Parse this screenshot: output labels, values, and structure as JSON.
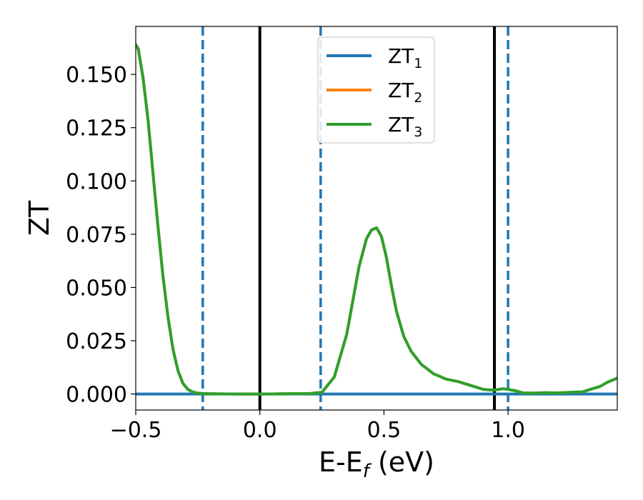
{
  "chart_data": {
    "type": "line",
    "xlabel": "E-E",
    "xlabel_sub": "f",
    "xlabel_unit": " (eV)",
    "ylabel": "ZT",
    "xlim": [
      -0.5,
      1.44
    ],
    "ylim": [
      -0.0075,
      0.1725
    ],
    "x_ticks": [
      -0.5,
      0.0,
      0.5,
      1.0
    ],
    "x_tick_labels": [
      "−0.5",
      "0.0",
      "0.5",
      "1.0"
    ],
    "y_ticks": [
      0.0,
      0.025,
      0.05,
      0.075,
      0.1,
      0.125,
      0.15
    ],
    "y_tick_labels": [
      "0.000",
      "0.025",
      "0.050",
      "0.075",
      "0.100",
      "0.125",
      "0.150"
    ],
    "grid": false,
    "legend_position": "upper-center",
    "vertical_lines": [
      {
        "x": 0.0,
        "style": "solid",
        "color": "#000000"
      },
      {
        "x": 0.945,
        "style": "solid",
        "color": "#000000"
      },
      {
        "x": -0.23,
        "style": "dashed",
        "color": "#1f77b4"
      },
      {
        "x": 0.245,
        "style": "dashed",
        "color": "#1f77b4"
      },
      {
        "x": 1.0,
        "style": "dashed",
        "color": "#1f77b4"
      }
    ],
    "series": [
      {
        "name": "ZT",
        "name_sub": "1",
        "color": "#1f77b4",
        "x": [
          -0.5,
          1.44
        ],
        "y": [
          0.0,
          0.0
        ]
      },
      {
        "name": "ZT",
        "name_sub": "2",
        "color": "#ff7f0e",
        "x": [
          -0.5,
          -0.49,
          -0.47,
          -0.45,
          -0.43,
          -0.41,
          -0.39,
          -0.37,
          -0.35,
          -0.33,
          -0.31,
          -0.29,
          -0.27,
          -0.25,
          -0.23,
          -0.2,
          -0.1,
          0.0,
          0.1,
          0.2,
          0.25,
          0.3,
          0.35,
          0.4,
          0.43,
          0.45,
          0.47,
          0.49,
          0.51,
          0.53,
          0.55,
          0.58,
          0.61,
          0.65,
          0.7,
          0.75,
          0.8,
          0.85,
          0.9,
          0.94,
          0.98,
          1.0,
          1.03,
          1.06,
          1.1,
          1.15,
          1.2,
          1.25,
          1.3,
          1.34,
          1.37,
          1.4,
          1.44
        ],
        "y": [
          0.164,
          0.162,
          0.148,
          0.128,
          0.103,
          0.078,
          0.055,
          0.036,
          0.021,
          0.011,
          0.005,
          0.0022,
          0.0009,
          0.0004,
          0.0002,
          0.0001,
          0.0,
          0.0,
          0.0001,
          0.0002,
          0.0008,
          0.008,
          0.028,
          0.06,
          0.073,
          0.077,
          0.078,
          0.074,
          0.064,
          0.051,
          0.039,
          0.027,
          0.02,
          0.014,
          0.0095,
          0.007,
          0.0058,
          0.004,
          0.0022,
          0.0018,
          0.0025,
          0.0022,
          0.0015,
          0.0005,
          0.0004,
          0.0006,
          0.0005,
          0.0008,
          0.001,
          0.0025,
          0.0035,
          0.0055,
          0.0075
        ]
      },
      {
        "name": "ZT",
        "name_sub": "3",
        "color": "#2ca02c",
        "x": [
          -0.5,
          -0.49,
          -0.47,
          -0.45,
          -0.43,
          -0.41,
          -0.39,
          -0.37,
          -0.35,
          -0.33,
          -0.31,
          -0.29,
          -0.27,
          -0.25,
          -0.23,
          -0.2,
          -0.1,
          0.0,
          0.1,
          0.2,
          0.25,
          0.3,
          0.35,
          0.4,
          0.43,
          0.45,
          0.47,
          0.49,
          0.51,
          0.53,
          0.55,
          0.58,
          0.61,
          0.65,
          0.7,
          0.75,
          0.8,
          0.85,
          0.9,
          0.94,
          0.98,
          1.0,
          1.03,
          1.06,
          1.1,
          1.15,
          1.2,
          1.25,
          1.3,
          1.34,
          1.37,
          1.4,
          1.44
        ],
        "y": [
          0.164,
          0.162,
          0.148,
          0.128,
          0.103,
          0.078,
          0.055,
          0.036,
          0.021,
          0.011,
          0.005,
          0.0022,
          0.0009,
          0.0004,
          0.0002,
          0.0001,
          0.0,
          0.0,
          0.0001,
          0.0002,
          0.0008,
          0.008,
          0.028,
          0.06,
          0.073,
          0.077,
          0.078,
          0.074,
          0.064,
          0.051,
          0.039,
          0.027,
          0.02,
          0.014,
          0.0095,
          0.007,
          0.0058,
          0.004,
          0.0022,
          0.0018,
          0.0025,
          0.0022,
          0.0015,
          0.0005,
          0.0004,
          0.0006,
          0.0005,
          0.0008,
          0.001,
          0.0025,
          0.0035,
          0.0055,
          0.0075
        ]
      }
    ]
  }
}
